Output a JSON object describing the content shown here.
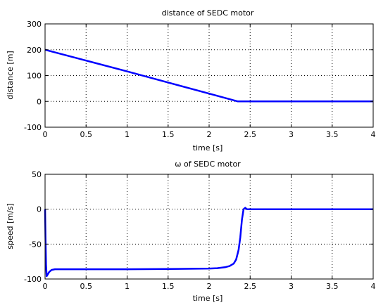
{
  "chart_data": [
    {
      "type": "line",
      "title": "distance of SEDC motor",
      "xlabel": "time [s]",
      "ylabel": "distance [m]",
      "xlim": [
        0,
        4
      ],
      "ylim": [
        -100,
        300
      ],
      "xticks": [
        0,
        0.5,
        1,
        1.5,
        2,
        2.5,
        3,
        3.5,
        4
      ],
      "yticks": [
        -100,
        0,
        100,
        200,
        300
      ],
      "xtick_labels": [
        "0",
        "0.5",
        "1",
        "1.5",
        "2",
        "2.5",
        "3",
        "3.5",
        "4"
      ],
      "ytick_labels": [
        "-100",
        "0",
        "100",
        "200",
        "300"
      ],
      "grid": true,
      "color": "#0000ff",
      "series": [
        {
          "x": [
            0,
            0.5,
            1.0,
            1.5,
            2.0,
            2.35,
            2.4,
            3.0,
            3.5,
            4.0
          ],
          "y": [
            200,
            158,
            116,
            73,
            30,
            0,
            0,
            0,
            0,
            0
          ]
        }
      ]
    },
    {
      "type": "line",
      "title": "ω of SEDC motor",
      "xlabel": "time [s]",
      "ylabel": "speed [m/s]",
      "xlim": [
        0,
        4
      ],
      "ylim": [
        -100,
        50
      ],
      "xticks": [
        0,
        0.5,
        1,
        1.5,
        2,
        2.5,
        3,
        3.5,
        4
      ],
      "yticks": [
        -100,
        -50,
        0,
        50
      ],
      "xtick_labels": [
        "0",
        "0.5",
        "1",
        "1.5",
        "2",
        "2.5",
        "3",
        "3.5",
        "4"
      ],
      "ytick_labels": [
        "-100",
        "-50",
        "0",
        "50"
      ],
      "grid": true,
      "color": "#0000ff",
      "series": [
        {
          "x": [
            0,
            0.005,
            0.012,
            0.02,
            0.03,
            0.05,
            0.08,
            0.12,
            0.5,
            1.0,
            1.5,
            2.0,
            2.1,
            2.2,
            2.25,
            2.3,
            2.33,
            2.36,
            2.38,
            2.4,
            2.42,
            2.44,
            2.46,
            2.5,
            3.0,
            3.5,
            4.0
          ],
          "y": [
            0,
            -40,
            -80,
            -96,
            -94,
            -90,
            -87,
            -86,
            -86,
            -86,
            -85.7,
            -85,
            -84.5,
            -83,
            -81.5,
            -78,
            -72,
            -58,
            -40,
            -15,
            0,
            2,
            0,
            0,
            0,
            0,
            0
          ]
        }
      ]
    }
  ]
}
